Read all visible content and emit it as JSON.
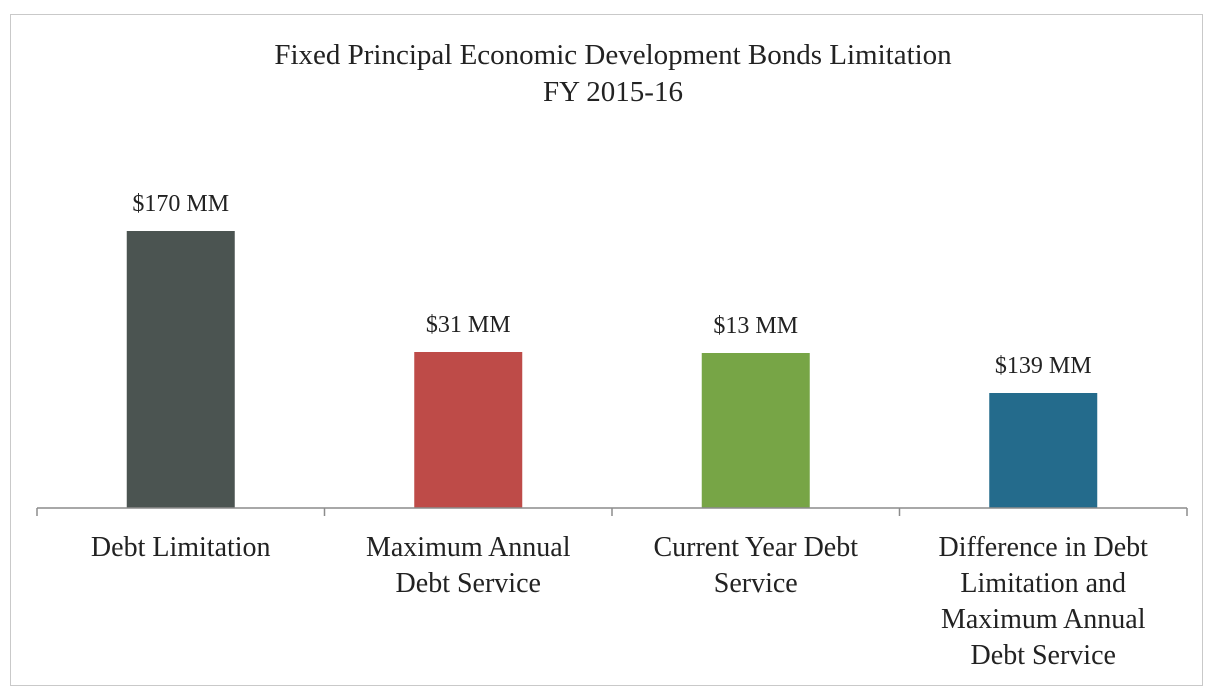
{
  "chart_data": {
    "type": "bar",
    "title": "Fixed Principal Economic Development Bonds Limitation",
    "subtitle": "FY 2015-16",
    "categories": [
      [
        "Debt Limitation"
      ],
      [
        "Maximum Annual",
        "Debt Service"
      ],
      [
        "Current Year Debt",
        "Service"
      ],
      [
        "Difference in Debt",
        "Limitation and",
        "Maximum Annual",
        "Debt Service"
      ]
    ],
    "values": [
      170,
      31,
      13,
      139
    ],
    "value_labels": [
      "$170 MM",
      "$31 MM",
      "$13 MM",
      "$139 MM"
    ],
    "bar_colors": [
      "#4b5451",
      "#be4b48",
      "#77a546",
      "#246b8c"
    ],
    "xlabel": "",
    "ylabel": "",
    "grid": false,
    "legend": "none"
  }
}
